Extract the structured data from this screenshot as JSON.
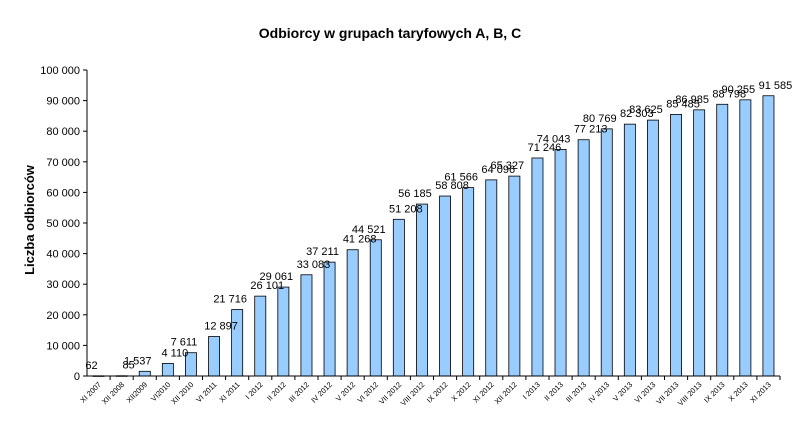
{
  "chart_data": {
    "type": "bar",
    "title": "Odbiorcy w grupach taryfowych A, B, C",
    "ylabel": "Liczba odbiorców",
    "xlabel": "",
    "ylim": [
      0,
      100000
    ],
    "yticks": [
      "0",
      "10 000",
      "20 000",
      "30 000",
      "40 000",
      "50 000",
      "60 000",
      "70 000",
      "80 000",
      "90 000",
      "100 000"
    ],
    "bar_color": "#99ccff",
    "bar_edge": "#000000",
    "grid": false,
    "legend": "none",
    "categories": [
      "XI 2007",
      "XII 2008",
      "XII2009",
      "VI2010",
      "XII 2010",
      "VI 2011",
      "XI 2011",
      "I 2012",
      "II 2012",
      "III 2012",
      "IV 2012",
      "V 2012",
      "VI 2012",
      "VII 2012",
      "VIII 2012",
      "IX 2012",
      "X 2012",
      "XI 2012",
      "XII 2012",
      "I 2013",
      "II 2013",
      "III 2013",
      "IV 2013",
      "V 2013",
      "VI 2013",
      "VII 2013",
      "VIII 2013",
      "IX 2013",
      "X 2013",
      "XI 2013"
    ],
    "values": [
      62,
      85,
      1537,
      4110,
      7611,
      12897,
      21716,
      26101,
      29061,
      33083,
      37211,
      41268,
      44521,
      51208,
      56185,
      58808,
      61566,
      64096,
      65327,
      71246,
      74043,
      77213,
      80769,
      82303,
      83625,
      85485,
      86985,
      88798,
      90255,
      91585
    ],
    "value_labels": [
      "62",
      "85",
      "1 537",
      "4 110",
      "7 611",
      "12 897",
      "21 716",
      "26 101",
      "29 061",
      "33 083",
      "37 211",
      "41 268",
      "44 521",
      "51 208",
      "56 185",
      "58 808",
      "61 566",
      "64 096",
      "65 327",
      "71 246",
      "74 043",
      "77 213",
      "80 769",
      "82 303",
      "83 625",
      "85 485",
      "86 985",
      "88 798",
      "90 255",
      "91 585"
    ]
  }
}
